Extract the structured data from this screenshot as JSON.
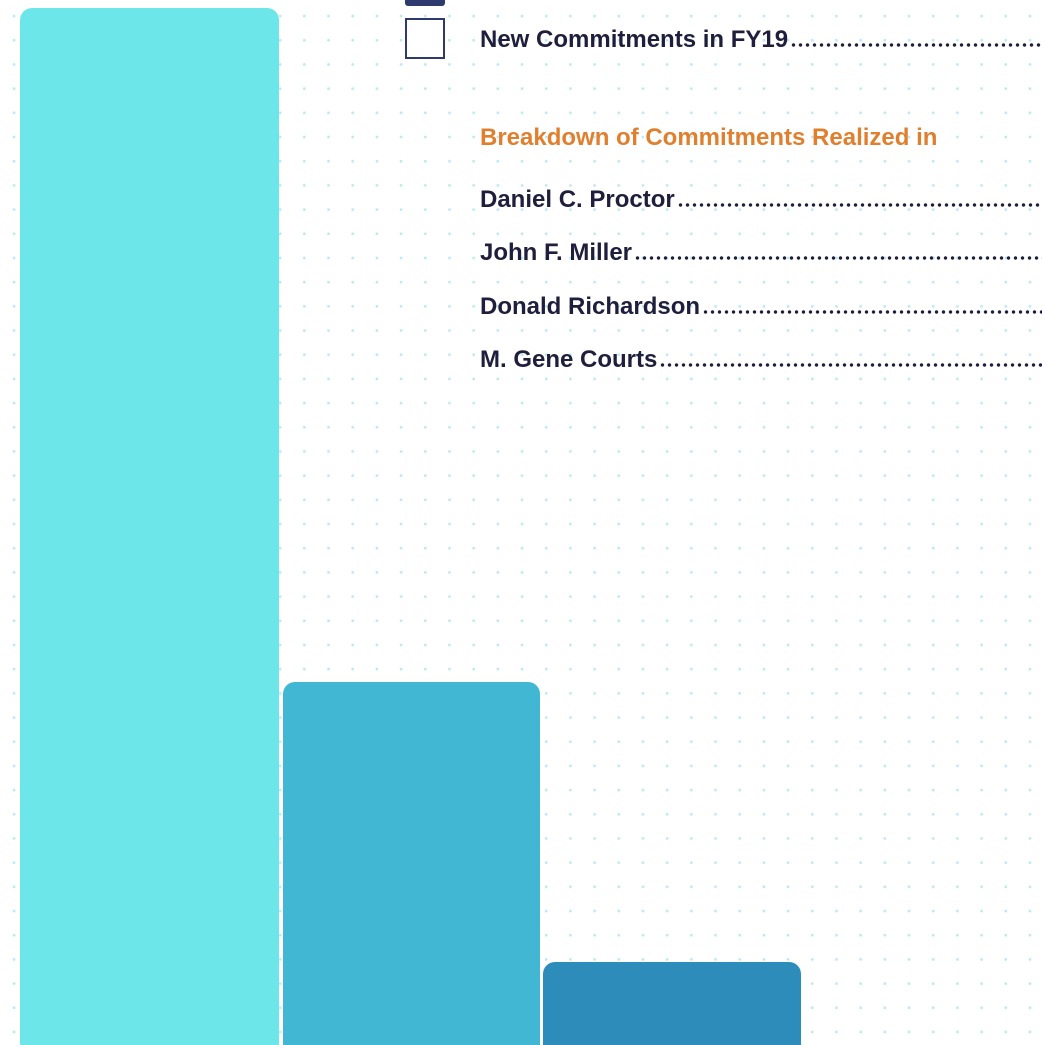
{
  "legend": {
    "new_commitments": "New Commitments in FY19"
  },
  "breakdown": {
    "heading": "Breakdown of Commitments Realized in",
    "names": [
      "Daniel C. Proctor",
      "John F. Miller",
      "Donald Richardson",
      "M. Gene Courts"
    ]
  }
}
